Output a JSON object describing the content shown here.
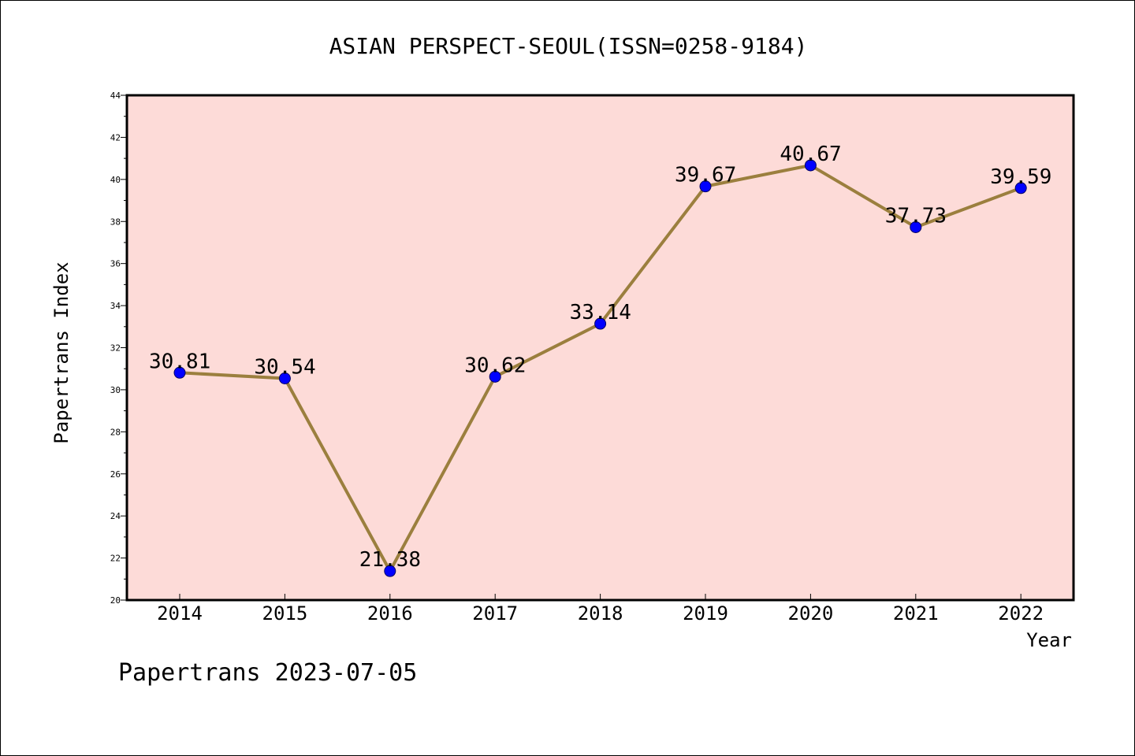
{
  "chart_data": {
    "type": "line",
    "title": "ASIAN PERSPECT-SEOUL(ISSN=0258-9184)",
    "xlabel": "Year",
    "ylabel": "Papertrans Index",
    "categories": [
      "2014",
      "2015",
      "2016",
      "2017",
      "2018",
      "2019",
      "2020",
      "2021",
      "2022"
    ],
    "series": [
      {
        "values": [
          30.81,
          30.54,
          21.38,
          30.62,
          33.14,
          39.67,
          40.67,
          37.73,
          39.59
        ],
        "labels": [
          "30.81",
          "30.54",
          "21.38",
          "30.62",
          "33.14",
          "39.67",
          "40.67",
          "37.73",
          "39.59"
        ]
      }
    ],
    "ylim": [
      20,
      44
    ],
    "y_ticks": [
      "20",
      "22",
      "24",
      "26",
      "28",
      "30",
      "32",
      "34",
      "36",
      "38",
      "40",
      "42",
      "44"
    ],
    "grid": false,
    "legend": "none",
    "colors": {
      "plot_background": "#fddbd8",
      "line": "#9b7f3e",
      "marker": "#0000ff"
    }
  },
  "footer": {
    "watermark": "Papertrans 2023-07-05"
  }
}
